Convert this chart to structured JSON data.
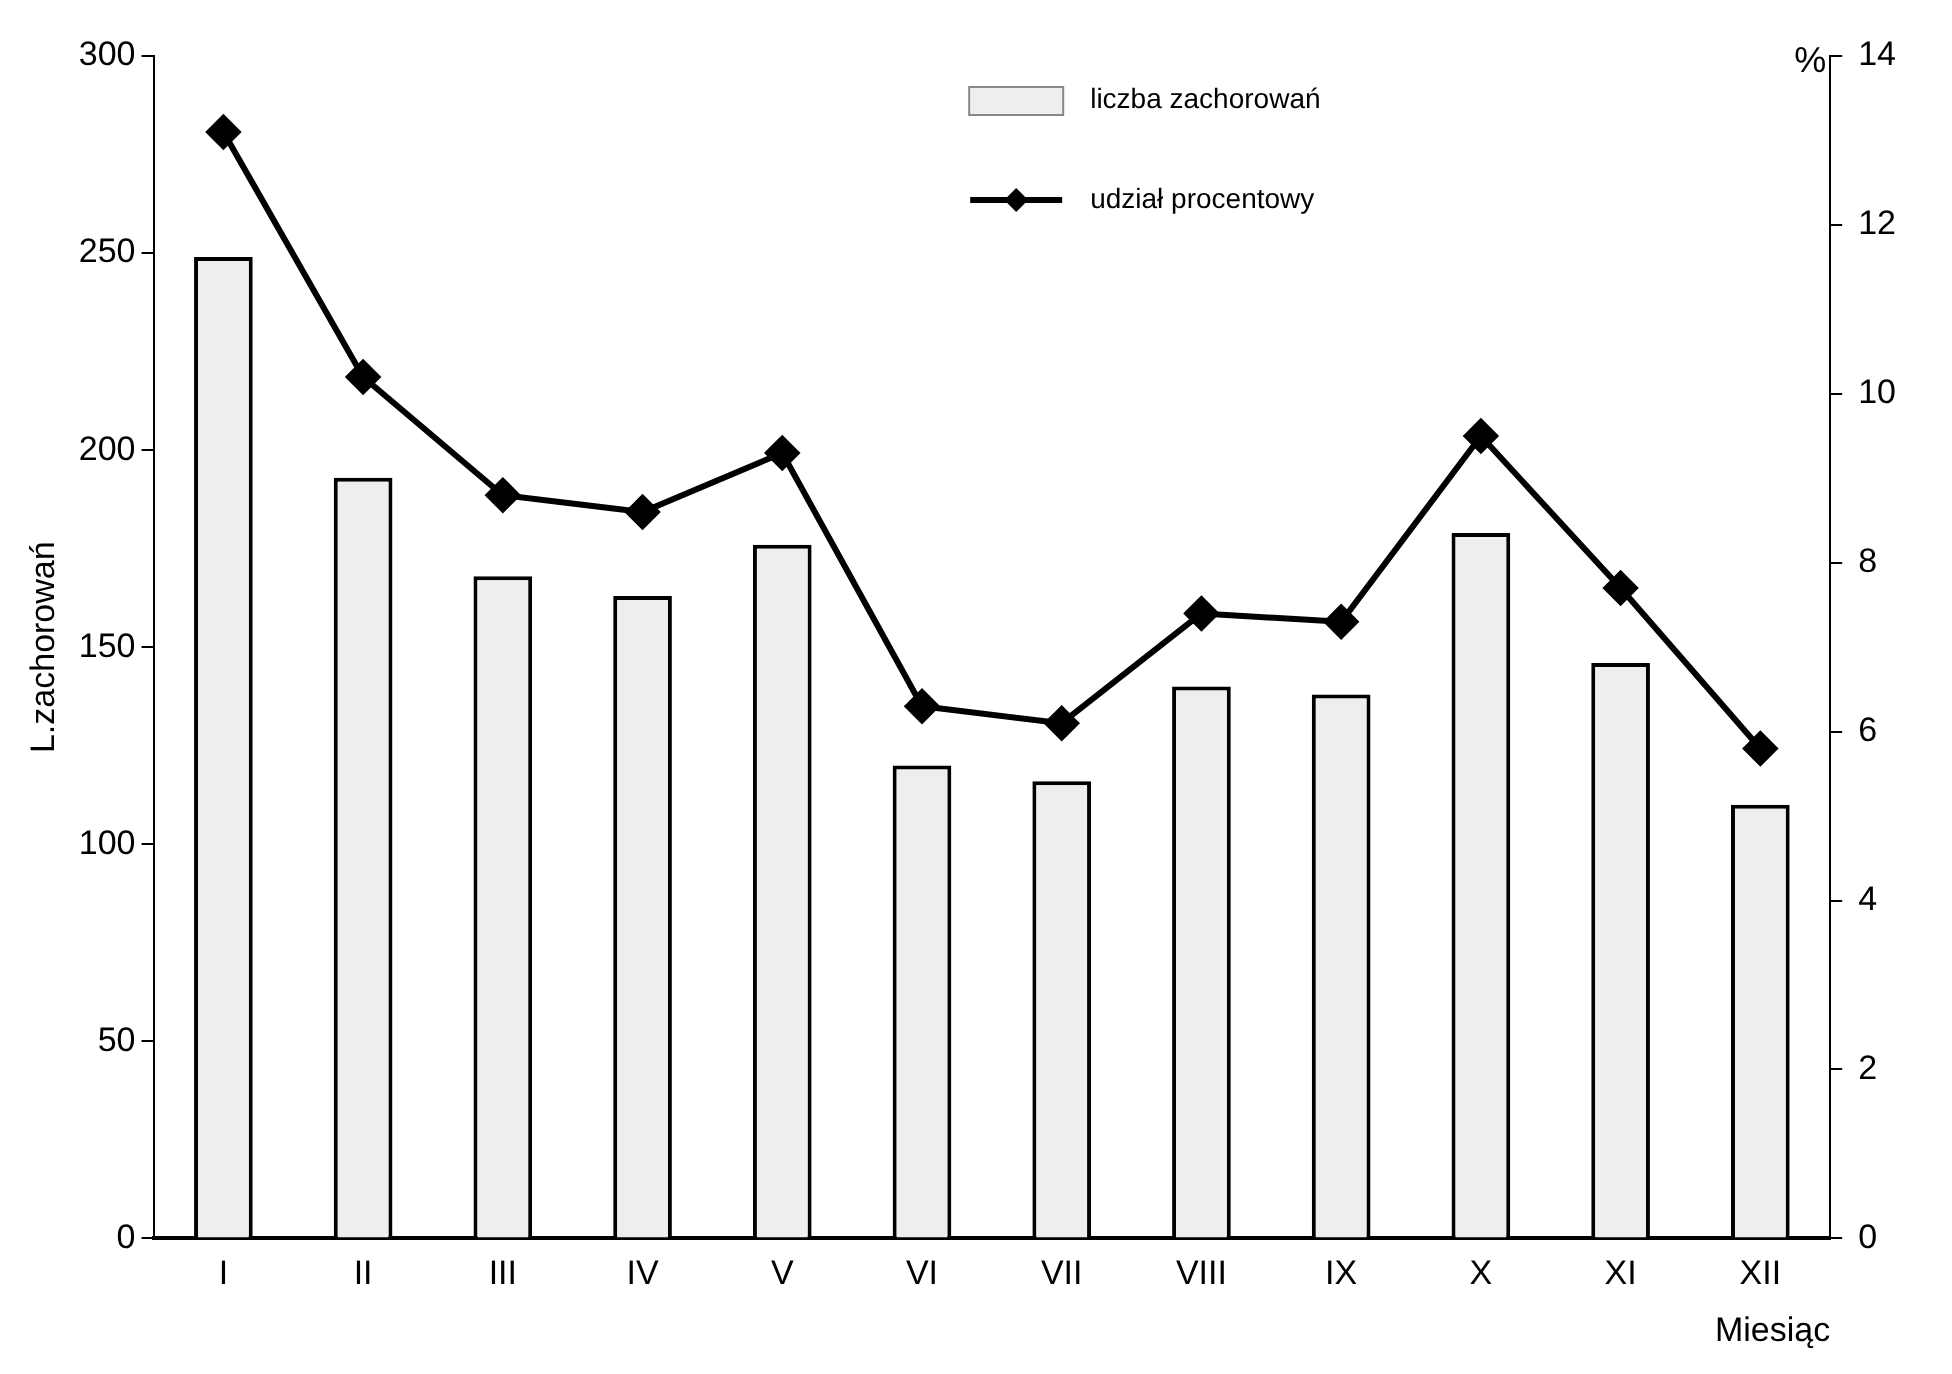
{
  "chart_data": {
    "type": "bar",
    "xlabel": "Miesiąc",
    "ylabel": "L.zachorowań",
    "y2label": "%",
    "categories": [
      "I",
      "II",
      "III",
      "IV",
      "V",
      "VI",
      "VII",
      "VIII",
      "IX",
      "X",
      "XI",
      "XII"
    ],
    "series": [
      {
        "name": "liczba zachorowań",
        "color": "#eeeeee",
        "values": [
          249,
          193,
          168,
          163,
          176,
          120,
          116,
          140,
          138,
          179,
          146,
          110
        ]
      },
      {
        "name": "udział procentowy",
        "type": "line",
        "axis": "y2",
        "color": "#000000",
        "values": [
          13.1,
          10.2,
          8.8,
          8.6,
          9.3,
          6.3,
          6.1,
          7.4,
          7.3,
          9.5,
          7.7,
          5.8
        ]
      }
    ],
    "ylim": [
      0,
      300
    ],
    "yticks": [
      0,
      50,
      100,
      150,
      200,
      250,
      300
    ],
    "y2lim": [
      0,
      14
    ],
    "y2ticks": [
      0,
      2,
      4,
      6,
      8,
      10,
      12,
      14
    ],
    "grid": false,
    "legend": "top right",
    "marker": "diamond",
    "line_style": "solid"
  }
}
